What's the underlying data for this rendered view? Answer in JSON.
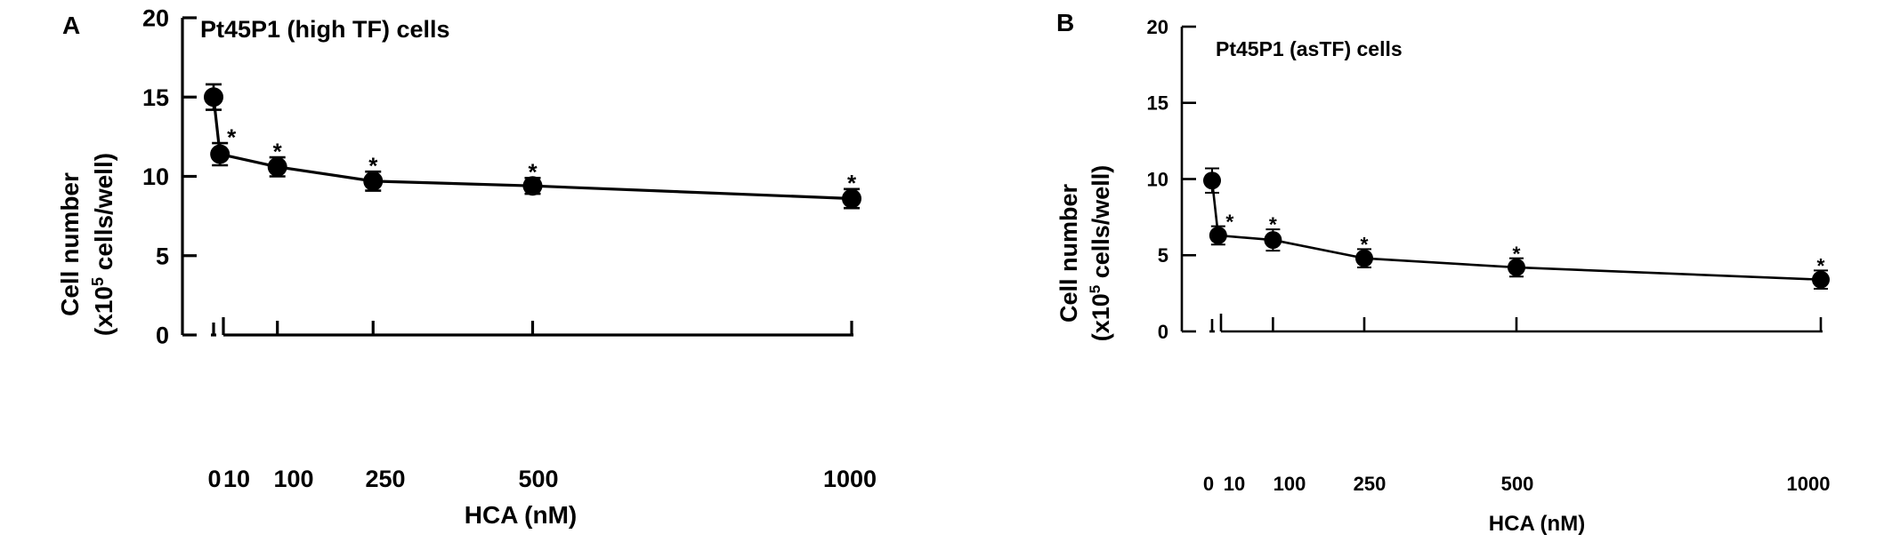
{
  "chart_data": [
    {
      "panel_label": "A",
      "type": "line",
      "title": "Pt45P1 (high TF) cells",
      "xlabel": "HCA (nM)",
      "ylabel_line1": "Cell number",
      "ylabel_line2_pre": "(x10",
      "ylabel_line2_sup": "5",
      "ylabel_line2_post": " cells/well)",
      "ylim": [
        0,
        20
      ],
      "yticks": [
        "0",
        "5",
        "10",
        "15",
        "20"
      ],
      "xticks": [
        "0",
        "10",
        "100",
        "250",
        "500",
        "1000"
      ],
      "series": [
        {
          "x": [
            0,
            10,
            100,
            250,
            500,
            1000
          ],
          "y": [
            15.0,
            11.4,
            10.6,
            9.7,
            9.4,
            8.6
          ],
          "err": [
            0.8,
            0.7,
            0.6,
            0.6,
            0.5,
            0.6
          ],
          "significance": [
            "",
            "*",
            "*",
            "*",
            "*",
            "*"
          ]
        }
      ]
    },
    {
      "panel_label": "B",
      "type": "line",
      "title": "Pt45P1 (asTF) cells",
      "xlabel": "HCA (nM)",
      "ylabel_line1": "Cell number",
      "ylabel_line2_pre": "(x10",
      "ylabel_line2_sup": "5",
      "ylabel_line2_post": " cells/well)",
      "ylim": [
        0,
        20
      ],
      "yticks": [
        "0",
        "5",
        "10",
        "15",
        "20"
      ],
      "xticks": [
        "0",
        "10",
        "100",
        "250",
        "500",
        "1000"
      ],
      "series": [
        {
          "x": [
            0,
            10,
            100,
            250,
            500,
            1000
          ],
          "y": [
            9.9,
            6.3,
            6.0,
            4.8,
            4.2,
            3.4
          ],
          "err": [
            0.8,
            0.6,
            0.7,
            0.6,
            0.6,
            0.6
          ],
          "significance": [
            "",
            "*",
            "*",
            "*",
            "*",
            "*"
          ]
        }
      ]
    }
  ]
}
